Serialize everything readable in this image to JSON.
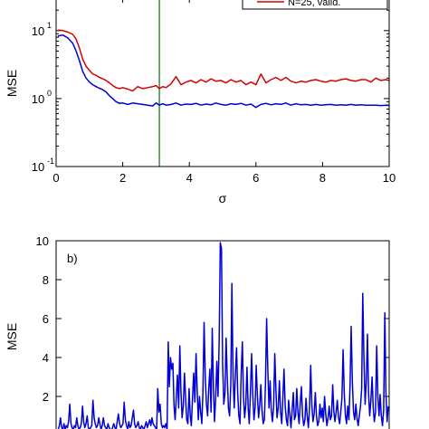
{
  "chart_data": [
    {
      "panel": "a",
      "type": "line",
      "title": "",
      "xlabel": "σ",
      "ylabel": "MSE",
      "xlim": [
        0,
        10
      ],
      "ylim": [
        0.1,
        30
      ],
      "yscale": "log",
      "xticks": [
        0,
        2,
        4,
        6,
        8,
        10
      ],
      "xtick_labels": [
        "0",
        "2",
        "4",
        "6",
        "8",
        "10"
      ],
      "yticks": [
        0.1,
        1,
        10
      ],
      "ytick_labels": [
        {
          "base": "10",
          "exp": "-1"
        },
        {
          "base": "10",
          "exp": "0"
        },
        {
          "base": "10",
          "exp": "1"
        }
      ],
      "vline": {
        "x": 3.1,
        "color": "#1e7a1e"
      },
      "legend": {
        "placement": "top-right",
        "entries": [
          {
            "label": "N=25, valid.",
            "color": "#d40000"
          }
        ]
      },
      "series": [
        {
          "name": "N=25, valid.",
          "color": "#d40000",
          "x": [
            0.05,
            0.2,
            0.35,
            0.5,
            0.6,
            0.7,
            0.8,
            0.9,
            1.0,
            1.1,
            1.2,
            1.3,
            1.4,
            1.5,
            1.6,
            1.7,
            1.8,
            1.9,
            2.0,
            2.15,
            2.3,
            2.45,
            2.6,
            2.75,
            2.9,
            3.0,
            3.1,
            3.2,
            3.3,
            3.45,
            3.6,
            3.75,
            3.9,
            4.05,
            4.2,
            4.35,
            4.5,
            4.65,
            4.8,
            4.95,
            5.1,
            5.25,
            5.4,
            5.55,
            5.7,
            5.85,
            6.0,
            6.15,
            6.3,
            6.45,
            6.6,
            6.75,
            6.9,
            7.05,
            7.2,
            7.35,
            7.5,
            7.65,
            7.8,
            7.95,
            8.1,
            8.25,
            8.4,
            8.55,
            8.7,
            8.85,
            9.0,
            9.15,
            9.3,
            9.45,
            9.6,
            9.75,
            9.9,
            10.0
          ],
          "values": [
            10.2,
            10.0,
            9.5,
            8.8,
            7.5,
            5.5,
            3.8,
            3.0,
            2.6,
            2.3,
            2.2,
            2.05,
            1.95,
            1.85,
            1.7,
            1.55,
            1.45,
            1.4,
            1.45,
            1.38,
            1.3,
            1.5,
            1.4,
            1.45,
            1.5,
            1.55,
            1.4,
            1.5,
            1.45,
            1.65,
            2.1,
            1.6,
            1.75,
            1.85,
            1.7,
            1.9,
            1.75,
            1.95,
            1.8,
            1.85,
            1.7,
            1.9,
            1.75,
            1.85,
            1.6,
            1.75,
            1.6,
            2.3,
            1.7,
            1.9,
            2.05,
            1.85,
            2.05,
            1.8,
            1.7,
            1.8,
            1.75,
            1.85,
            1.9,
            1.8,
            1.75,
            1.85,
            1.8,
            1.9,
            1.95,
            1.85,
            1.8,
            1.9,
            1.9,
            1.75,
            2.0,
            1.85,
            1.9,
            1.85
          ]
        },
        {
          "name": "",
          "color": "#0000d4",
          "x": [
            0.05,
            0.2,
            0.35,
            0.5,
            0.6,
            0.7,
            0.8,
            0.9,
            1.0,
            1.1,
            1.2,
            1.3,
            1.4,
            1.5,
            1.6,
            1.7,
            1.8,
            1.9,
            2.0,
            2.15,
            2.3,
            2.45,
            2.6,
            2.75,
            2.9,
            3.0,
            3.1,
            3.2,
            3.3,
            3.45,
            3.6,
            3.75,
            3.9,
            4.05,
            4.2,
            4.35,
            4.5,
            4.65,
            4.8,
            4.95,
            5.1,
            5.25,
            5.4,
            5.55,
            5.7,
            5.85,
            6.0,
            6.15,
            6.3,
            6.45,
            6.6,
            6.75,
            6.9,
            7.05,
            7.2,
            7.35,
            7.5,
            7.65,
            7.8,
            7.95,
            8.1,
            8.25,
            8.4,
            8.55,
            8.7,
            8.85,
            9.0,
            9.15,
            9.3,
            9.45,
            9.6,
            9.75,
            9.9,
            10.0
          ],
          "values": [
            8.3,
            8.6,
            7.8,
            6.5,
            5.0,
            3.6,
            2.5,
            2.0,
            1.75,
            1.6,
            1.5,
            1.42,
            1.35,
            1.25,
            1.1,
            1.0,
            0.9,
            0.85,
            0.86,
            0.82,
            0.86,
            0.84,
            0.82,
            0.8,
            0.78,
            0.86,
            0.8,
            0.84,
            0.8,
            0.82,
            0.86,
            0.8,
            0.83,
            0.82,
            0.85,
            0.8,
            0.83,
            0.81,
            0.86,
            0.82,
            0.8,
            0.84,
            0.82,
            0.85,
            0.8,
            0.83,
            0.74,
            0.82,
            0.85,
            0.81,
            0.84,
            0.82,
            0.86,
            0.8,
            0.84,
            0.81,
            0.82,
            0.8,
            0.82,
            0.8,
            0.81,
            0.82,
            0.8,
            0.81,
            0.8,
            0.82,
            0.8,
            0.81,
            0.8,
            0.8,
            0.8,
            0.79,
            0.8,
            0.79
          ]
        }
      ]
    },
    {
      "panel": "b",
      "type": "line",
      "panel_label": "b)",
      "title": "",
      "xlabel": "",
      "ylabel": "MSE",
      "ylim": [
        0,
        10
      ],
      "yticks": [
        2,
        4,
        6,
        8,
        10
      ],
      "ytick_labels": [
        "2",
        "4",
        "6",
        "8",
        "10"
      ],
      "series": [
        {
          "name": "",
          "color": "#0000d4",
          "values": [
            0.2,
            0.3,
            0.5,
            0.9,
            0.4,
            0.3,
            0.6,
            0.3,
            0.5,
            0.4,
            0.7,
            1.6,
            0.6,
            0.4,
            0.3,
            0.5,
            0.4,
            0.9,
            0.5,
            0.3,
            0.4,
            0.6,
            1.5,
            0.7,
            0.4,
            0.6,
            1.0,
            0.4,
            0.3,
            0.4,
            0.5,
            1.8,
            0.9,
            0.6,
            0.4,
            0.5,
            0.9,
            0.6,
            0.3,
            0.5,
            0.9,
            0.5,
            0.4,
            0.3,
            0.6,
            0.4,
            0.3,
            0.2,
            0.4,
            0.6,
            0.4,
            0.3,
            0.7,
            1.1,
            0.6,
            0.4,
            0.5,
            0.6,
            1.7,
            0.8,
            0.5,
            0.3,
            0.7,
            0.4,
            0.5,
            0.9,
            1.3,
            0.6,
            0.4,
            0.5,
            0.7,
            0.4,
            0.3,
            0.5,
            0.4,
            0.3,
            0.5,
            0.7,
            0.4,
            0.6,
            0.8,
            0.5,
            0.9,
            0.6,
            0.5,
            0.4,
            0.3,
            2.4,
            1.2,
            1.6,
            0.6,
            0.4,
            0.5,
            0.4,
            0.6,
            0.3,
            4.8,
            2.5,
            4.0,
            3.4,
            3.7,
            1.5,
            0.8,
            2.0,
            3.1,
            1.4,
            4.6,
            2.3,
            0.9,
            1.5,
            3.2,
            2.0,
            0.8,
            0.6,
            2.4,
            1.0,
            0.5,
            1.9,
            3.2,
            1.7,
            4.2,
            2.4,
            0.8,
            2.0,
            1.2,
            0.6,
            2.2,
            5.8,
            3.0,
            1.6,
            1.0,
            2.4,
            3.4,
            1.2,
            5.5,
            2.5,
            0.7,
            1.9,
            3.8,
            2.0,
            5.0,
            9.9,
            9.6,
            3.6,
            1.6,
            2.2,
            5.0,
            3.0,
            1.4,
            1.0,
            2.6,
            7.8,
            3.0,
            1.4,
            3.2,
            4.5,
            2.2,
            1.0,
            0.6,
            3.2,
            4.8,
            2.0,
            0.9,
            1.6,
            3.5,
            1.4,
            0.6,
            2.2,
            4.2,
            2.1,
            0.8,
            1.4,
            3.6,
            2.0,
            0.9,
            1.6,
            2.6,
            1.3,
            0.6,
            0.8,
            2.6,
            6.0,
            3.4,
            1.4,
            2.8,
            1.3,
            0.7,
            1.5,
            4.2,
            2.3,
            0.9,
            1.4,
            2.8,
            1.2,
            0.6,
            1.9,
            3.4,
            1.5,
            0.8,
            0.5,
            1.8,
            1.1,
            0.4,
            1.3,
            2.2,
            0.8,
            1.0,
            2.4,
            1.2,
            0.6,
            1.6,
            2.5,
            1.0,
            0.5,
            0.8,
            1.9,
            1.0,
            0.4,
            1.4,
            3.6,
            1.6,
            0.7,
            1.1,
            2.2,
            1.0,
            0.5,
            0.7,
            1.6,
            0.9,
            1.4,
            0.7,
            2.0,
            1.1,
            0.5,
            0.9,
            1.5,
            0.8,
            1.0,
            2.6,
            1.2,
            0.7,
            1.2,
            1.8,
            0.9,
            0.6,
            1.2,
            1.9,
            4.4,
            2.1,
            1.0,
            0.6,
            1.5,
            0.8,
            2.6,
            5.6,
            2.8,
            1.2,
            0.8,
            1.6,
            0.9,
            0.5,
            1.0,
            1.5,
            2.4,
            7.3,
            4.0,
            1.6,
            2.8,
            5.2,
            2.2,
            1.0,
            1.8,
            3.0,
            1.4,
            0.7,
            1.2,
            4.6,
            2.0,
            1.0,
            2.1,
            1.0,
            0.5,
            1.3,
            6.3,
            2.2,
            0.7,
            1.5
          ]
        }
      ]
    }
  ]
}
